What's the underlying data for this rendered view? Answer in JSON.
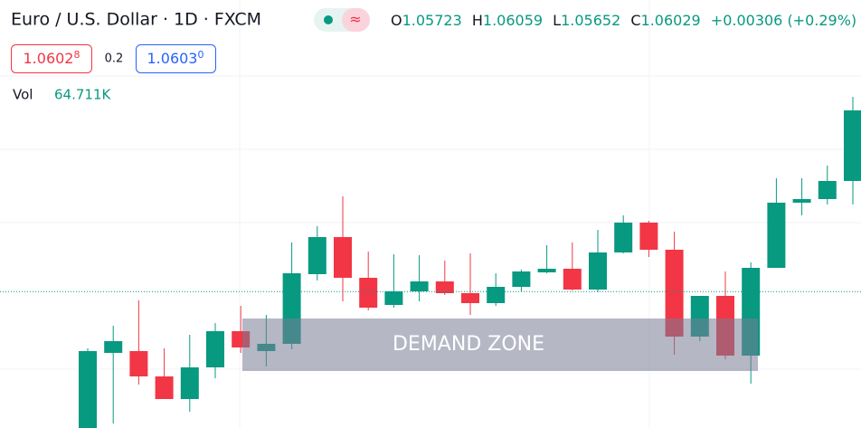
{
  "header": {
    "title": "Euro / U.S. Dollar · 1D · FXCM",
    "open_label": "O",
    "open": "1.05723",
    "high_label": "H",
    "high": "1.06059",
    "low_label": "L",
    "low": "1.05652",
    "close_label": "C",
    "close": "1.06029",
    "change": "+0.00306 (+0.29%)",
    "sell": "1.0602",
    "sell_digit": "8",
    "spread": "0.2",
    "buy": "1.0603",
    "buy_digit": "0",
    "volume_label": "Vol",
    "volume": "64.711K"
  },
  "chart_data": {
    "type": "candlestick",
    "ylim": [
      1.05275,
      1.0764
    ],
    "up_color": "#089981",
    "down_color": "#f23645",
    "last_price": 1.06029,
    "annotation": {
      "label": "DEMAND ZONE",
      "top": 1.0588,
      "bottom": 1.0559
    },
    "open": [
      1.05275,
      1.0569,
      1.057,
      1.0556,
      1.05435,
      1.0561,
      1.0581,
      1.057,
      1.0574,
      1.06125,
      1.0633,
      1.06105,
      1.05955,
      1.0603,
      1.06085,
      1.0602,
      1.05965,
      1.06055,
      1.06135,
      1.06155,
      1.0604,
      1.06245,
      1.0641,
      1.0626,
      1.0578,
      1.06005,
      1.05675,
      1.0616,
      1.0652,
      1.0654,
      1.0664
    ],
    "high": [
      1.05715,
      1.0584,
      1.0598,
      1.05715,
      1.0579,
      1.05855,
      1.0595,
      1.059,
      1.063,
      1.0639,
      1.06555,
      1.0625,
      1.06235,
      1.0623,
      1.062,
      1.0624,
      1.0613,
      1.0615,
      1.06285,
      1.063,
      1.0637,
      1.0645,
      1.0642,
      1.0636,
      1.06005,
      1.0614,
      1.0619,
      1.06655,
      1.06655,
      1.06725,
      1.07105
    ],
    "low": [
      1.05275,
      1.053,
      1.05515,
      1.05435,
      1.05365,
      1.0555,
      1.0569,
      1.05615,
      1.0571,
      1.0609,
      1.05975,
      1.05925,
      1.0594,
      1.05975,
      1.0601,
      1.059,
      1.0595,
      1.0603,
      1.0613,
      1.06035,
      1.06025,
      1.0624,
      1.0622,
      1.0568,
      1.05755,
      1.05655,
      1.0552,
      1.0616,
      1.0645,
      1.0651,
      1.0651
    ],
    "close": [
      1.057,
      1.05755,
      1.0556,
      1.05435,
      1.0561,
      1.0581,
      1.0572,
      1.0574,
      1.0613,
      1.0633,
      1.06105,
      1.0594,
      1.0603,
      1.06085,
      1.0602,
      1.05965,
      1.06055,
      1.0614,
      1.06155,
      1.0604,
      1.06245,
      1.0641,
      1.0626,
      1.0578,
      1.06005,
      1.05675,
      1.0616,
      1.0652,
      1.0654,
      1.0664,
      1.0703
    ]
  }
}
